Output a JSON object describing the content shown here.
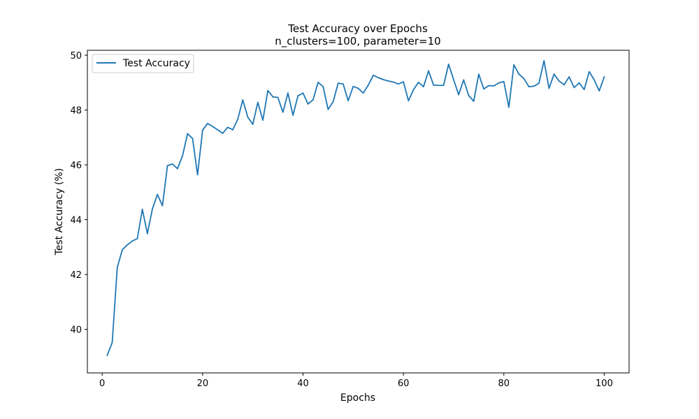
{
  "colors": {
    "background": "#ffffff",
    "axes": "#000000",
    "series": "#1f77b4",
    "legend_border": "#cccccc"
  },
  "chart_data": {
    "type": "line",
    "title": "Test Accuracy over Epochs",
    "subtitle": "n_clusters=100, parameter=10",
    "xlabel": "Epochs",
    "ylabel": "Test Accuracy (%)",
    "xlim": [
      -2.95,
      104.95
    ],
    "ylim": [
      38.41,
      50.18
    ],
    "xticks": [
      0,
      20,
      40,
      60,
      80,
      100
    ],
    "yticks": [
      40,
      42,
      44,
      46,
      48,
      50
    ],
    "grid": false,
    "legend_position": "upper-left",
    "series": [
      {
        "name": "Test Accuracy",
        "color": "#1f77b4",
        "x": [
          1,
          2,
          3,
          4,
          5,
          6,
          7,
          8,
          9,
          10,
          11,
          12,
          13,
          14,
          15,
          16,
          17,
          18,
          19,
          20,
          21,
          22,
          23,
          24,
          25,
          26,
          27,
          28,
          29,
          30,
          31,
          32,
          33,
          34,
          35,
          36,
          37,
          38,
          39,
          40,
          41,
          42,
          43,
          44,
          45,
          46,
          47,
          48,
          49,
          50,
          51,
          52,
          53,
          54,
          55,
          56,
          57,
          58,
          59,
          60,
          61,
          62,
          63,
          64,
          65,
          66,
          67,
          68,
          69,
          70,
          71,
          72,
          73,
          74,
          75,
          76,
          77,
          78,
          79,
          80,
          81,
          82,
          83,
          84,
          85,
          86,
          87,
          88,
          89,
          90,
          91,
          92,
          93,
          94,
          95,
          96,
          97,
          98,
          99,
          100
        ],
        "values": [
          39.05,
          39.52,
          42.25,
          42.9,
          43.08,
          43.22,
          43.31,
          44.38,
          43.49,
          44.39,
          44.92,
          44.51,
          45.97,
          46.03,
          45.86,
          46.33,
          47.14,
          46.96,
          45.64,
          47.27,
          47.51,
          47.4,
          47.28,
          47.15,
          47.37,
          47.28,
          47.66,
          48.37,
          47.74,
          47.48,
          48.28,
          47.63,
          48.71,
          48.48,
          48.46,
          47.92,
          48.62,
          47.81,
          48.52,
          48.62,
          48.22,
          48.37,
          49.01,
          48.86,
          48.02,
          48.3,
          48.98,
          48.95,
          48.34,
          48.86,
          48.79,
          48.62,
          48.91,
          49.27,
          49.18,
          49.11,
          49.06,
          49.02,
          48.95,
          49.03,
          48.34,
          48.74,
          49.01,
          48.85,
          49.43,
          48.91,
          48.9,
          48.9,
          49.67,
          49.11,
          48.56,
          49.1,
          48.53,
          48.32,
          49.31,
          48.77,
          48.89,
          48.88,
          48.99,
          49.04,
          48.1,
          49.65,
          49.31,
          49.15,
          48.85,
          48.87,
          48.98,
          49.8,
          48.79,
          49.31,
          49.06,
          48.92,
          49.21,
          48.82,
          48.99,
          48.75,
          49.4,
          49.1,
          48.7,
          49.21
        ]
      }
    ]
  }
}
